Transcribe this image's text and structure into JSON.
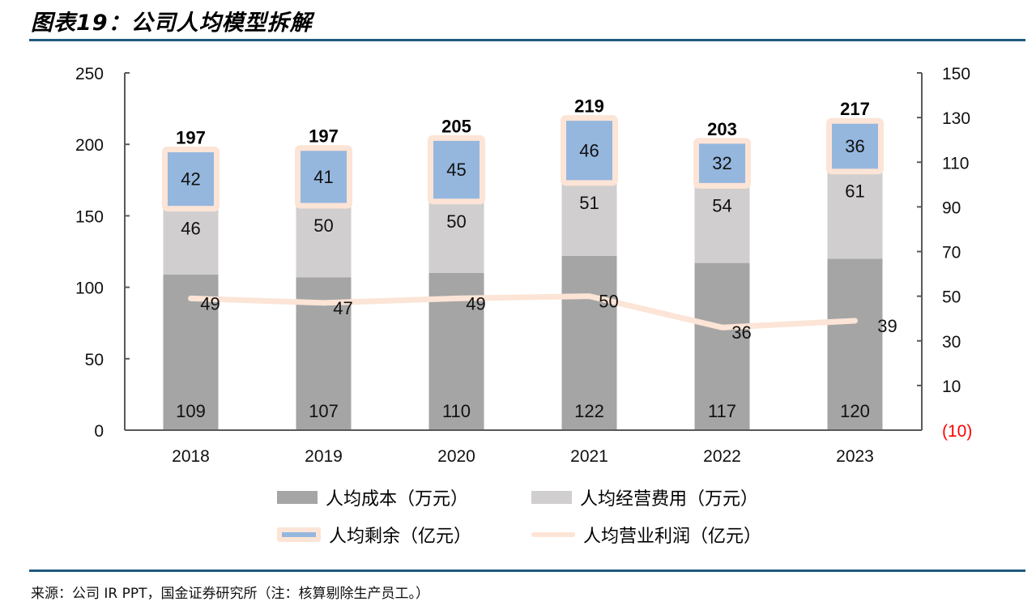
{
  "header": {
    "title": "图表19：公司人均模型拆解"
  },
  "footer": {
    "source": "来源：公司 IR PPT，国金证券研究所（注：核算剔除生产员工。）"
  },
  "colors": {
    "cost": "#a5a5a5",
    "opex": "#d0cece",
    "surplus": "#95b7de",
    "surplus_border": "#fce4d6",
    "profit_line": "#fce4d6",
    "axis": "#595959",
    "negative_tick": "#ff0000",
    "rule": "#1f5a7e"
  },
  "chart_data": {
    "type": "bar",
    "subtype": "stacked-bar-with-line",
    "title": "公司人均模型拆解",
    "categories": [
      "2018",
      "2019",
      "2020",
      "2021",
      "2022",
      "2023"
    ],
    "series": [
      {
        "name": "人均成本（万元）",
        "type": "bar",
        "axis": "left",
        "values": [
          109,
          107,
          110,
          122,
          117,
          120
        ]
      },
      {
        "name": "人均经营费用（万元）",
        "type": "bar",
        "axis": "left",
        "values": [
          46,
          50,
          50,
          51,
          54,
          61
        ]
      },
      {
        "name": "人均剩余（亿元）",
        "type": "bar",
        "axis": "left",
        "values": [
          42,
          41,
          45,
          46,
          32,
          36
        ]
      },
      {
        "name": "人均营业利润（亿元）",
        "type": "line",
        "axis": "right",
        "values": [
          49,
          47,
          49,
          50,
          36,
          39
        ]
      }
    ],
    "totals": [
      197,
      197,
      205,
      219,
      203,
      217
    ],
    "y_left": {
      "min": 0,
      "max": 250,
      "ticks": [
        "0",
        "50",
        "100",
        "150",
        "200",
        "250"
      ],
      "tick_values": [
        0,
        50,
        100,
        150,
        200,
        250
      ]
    },
    "y_right": {
      "min": -10,
      "max": 150,
      "ticks": [
        "(10)",
        "10",
        "30",
        "50",
        "70",
        "90",
        "110",
        "130",
        "150"
      ],
      "tick_values": [
        -10,
        10,
        30,
        50,
        70,
        90,
        110,
        130,
        150
      ]
    },
    "xlabel": "",
    "ylabel": "",
    "grid": false,
    "legend_position": "bottom",
    "legend": [
      "人均成本（万元）",
      "人均经营费用（万元）",
      "人均剩余（亿元）",
      "人均营业利润（亿元）"
    ]
  },
  "legend": {
    "items": [
      {
        "label": "人均成本（万元）"
      },
      {
        "label": "人均经营费用（万元）"
      },
      {
        "label": "人均剩余（亿元）"
      },
      {
        "label": "人均营业利润（亿元）"
      }
    ]
  }
}
